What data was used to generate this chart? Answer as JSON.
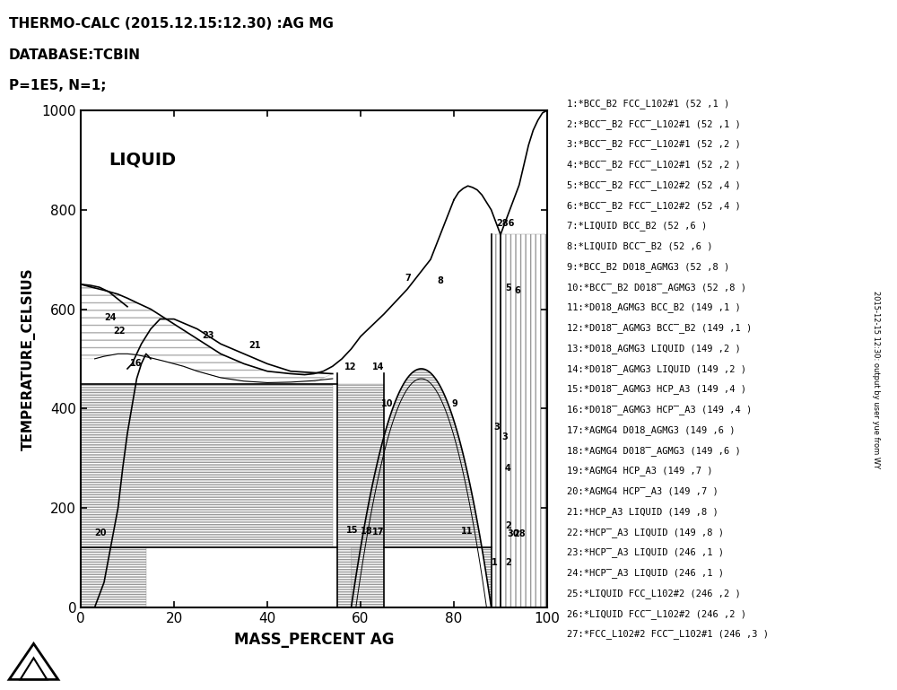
{
  "title_line1": "THERMO-CALC (2015.12.15:12.30) :AG MG",
  "title_line2": "DATABASE:TCBIN",
  "title_line3": "P=1E5, N=1;",
  "xlabel": "MASS_PERCENT AG",
  "ylabel": "TEMPERATURE_CELSIUS",
  "xlim": [
    0,
    100
  ],
  "ylim": [
    0,
    1000
  ],
  "xticks": [
    0,
    20,
    40,
    60,
    80,
    100
  ],
  "yticks": [
    0,
    200,
    400,
    600,
    800,
    1000
  ],
  "liquid_label": "LIQUID",
  "legend_entries": [
    "1:*BCC_B2 FCC_L102#1 (52 ,1 )",
    "2:*BCC̅_B2 FCC̅_L102#1 (52 ,1 )",
    "3:*BCC̅_B2 FCC̅_L102#1 (52 ,2 )",
    "4:*BCC̅_B2 FCC̅_L102#1 (52 ,2 )",
    "5:*BCC̅_B2 FCC̅_L102#2 (52 ,4 )",
    "6:*BCC̅_B2 FCC̅_L102#2 (52 ,4 )",
    "7:*LIQUID BCC_B2 (52 ,6 )",
    "8:*LIQUID BCC̅_B2 (52 ,6 )",
    "9:*BCC_B2 D018_AGMG3 (52 ,8 )",
    "10:*BCC̅_B2 D018̅_AGMG3 (52 ,8 )",
    "11:*D018_AGMG3 BCC_B2 (149 ,1 )",
    "12:*D018̅_AGMG3 BCC̅_B2 (149 ,1 )",
    "13:*D018_AGMG3 LIQUID (149 ,2 )",
    "14:*D018̅_AGMG3 LIQUID (149 ,2 )",
    "15:*D018̅_AGMG3 HCP_A3 (149 ,4 )",
    "16:*D018̅_AGMG3 HCP̅_A3 (149 ,4 )",
    "17:*AGMG4 D018_AGMG3 (149 ,6 )",
    "18:*AGMG4 D018̅_AGMG3 (149 ,6 )",
    "19:*AGMG4 HCP_A3 (149 ,7 )",
    "20:*AGMG4 HCP̅_A3 (149 ,7 )",
    "21:*HCP_A3 LIQUID (149 ,8 )",
    "22:*HCP̅_A3 LIQUID (149 ,8 )",
    "23:*HCP̅_A3 LIQUID (246 ,1 )",
    "24:*HCP̅_A3 LIQUID (246 ,1 )",
    "25:*LIQUID FCC_L102#2 (246 ,2 )",
    "26:*LIQUID FCC̅_L102#2 (246 ,2 )",
    "27:*FCC_L102#2 FCC̅_L102#1 (246 ,3 )"
  ],
  "bg_color": "white",
  "line_color": "black",
  "rotated_text": "2015-12-15 12:30: output by user yue from WY"
}
